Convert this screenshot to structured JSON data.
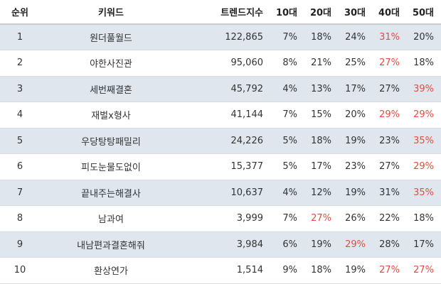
{
  "headers": {
    "rank": "순위",
    "keyword": "키워드",
    "score": "트렌드지수",
    "age10": "10대",
    "age20": "20대",
    "age30": "30대",
    "age40": "40대",
    "age50": "50대"
  },
  "rows": [
    {
      "rank": "1",
      "keyword": "원더풀월드",
      "score": "122,865",
      "age10": "7%",
      "age20": "18%",
      "age30": "24%",
      "age40": "31%",
      "age50": "20%"
    },
    {
      "rank": "2",
      "keyword": "야한사진관",
      "score": "95,060",
      "age10": "8%",
      "age20": "21%",
      "age30": "25%",
      "age40": "27%",
      "age50": "18%"
    },
    {
      "rank": "3",
      "keyword": "세번째결혼",
      "score": "45,792",
      "age10": "4%",
      "age20": "13%",
      "age30": "17%",
      "age40": "27%",
      "age50": "39%"
    },
    {
      "rank": "4",
      "keyword": "재벌x형사",
      "score": "41,144",
      "age10": "7%",
      "age20": "15%",
      "age30": "20%",
      "age40": "29%",
      "age50": "29%"
    },
    {
      "rank": "5",
      "keyword": "우당탕탕패밀리",
      "score": "24,226",
      "age10": "5%",
      "age20": "18%",
      "age30": "19%",
      "age40": "23%",
      "age50": "35%"
    },
    {
      "rank": "6",
      "keyword": "피도눈물도없이",
      "score": "15,377",
      "age10": "5%",
      "age20": "17%",
      "age30": "23%",
      "age40": "27%",
      "age50": "29%"
    },
    {
      "rank": "7",
      "keyword": "끝내주는해결사",
      "score": "10,637",
      "age10": "4%",
      "age20": "12%",
      "age30": "19%",
      "age40": "31%",
      "age50": "35%"
    },
    {
      "rank": "8",
      "keyword": "남과여",
      "score": "3,999",
      "age10": "7%",
      "age20": "27%",
      "age30": "26%",
      "age40": "22%",
      "age50": "18%"
    },
    {
      "rank": "9",
      "keyword": "내남편과결혼해줘",
      "score": "3,984",
      "age10": "6%",
      "age20": "19%",
      "age30": "29%",
      "age40": "28%",
      "age50": "17%"
    },
    {
      "rank": "10",
      "keyword": "환상연가",
      "score": "1,514",
      "age10": "9%",
      "age20": "18%",
      "age30": "19%",
      "age40": "27%",
      "age50": "27%"
    }
  ],
  "highlight_color": "#e84a3c",
  "shade_color": "#dfe6ed"
}
